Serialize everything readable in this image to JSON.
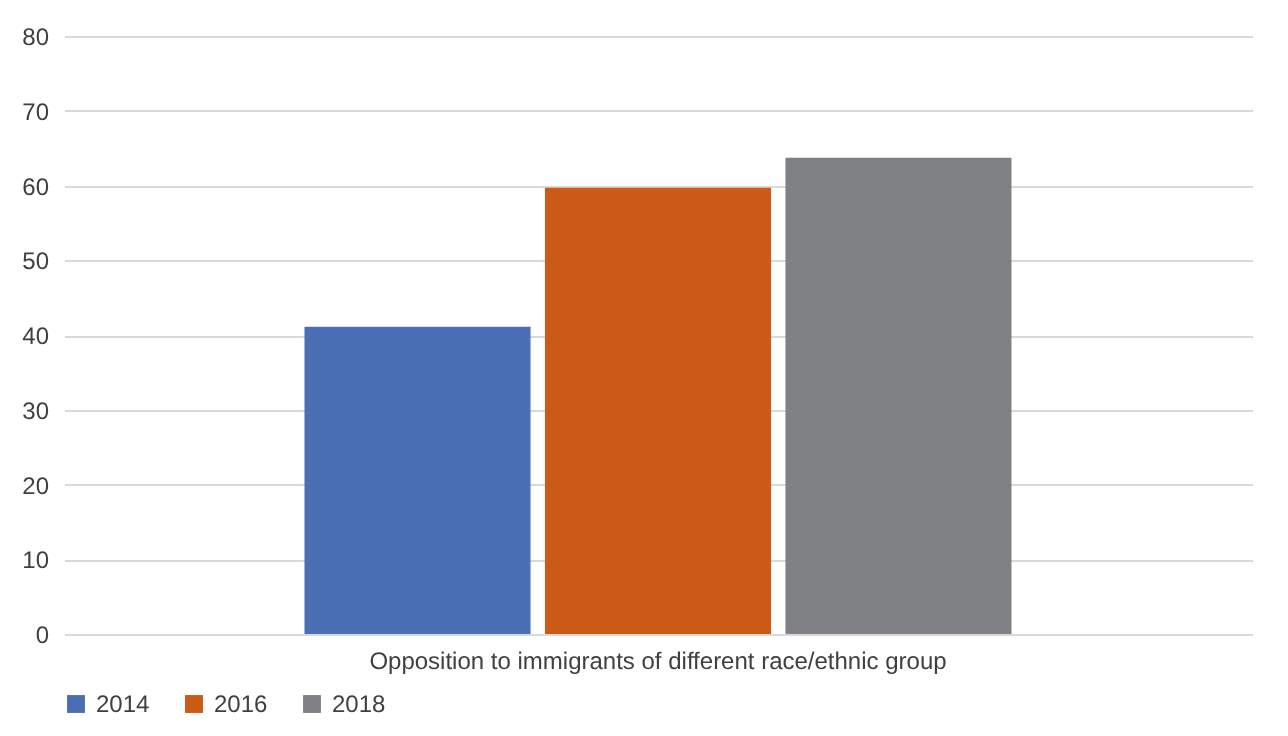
{
  "chart_data": {
    "type": "bar",
    "categories": [
      "Opposition to immigrants of different race/ethnic group"
    ],
    "series": [
      {
        "name": "2014",
        "color": "#4a6fb5",
        "values": [
          41.1
        ]
      },
      {
        "name": "2016",
        "color": "#cc5a16",
        "values": [
          59.7
        ]
      },
      {
        "name": "2018",
        "color": "#808184",
        "values": [
          63.7
        ]
      }
    ],
    "ylim": [
      0,
      80
    ],
    "yticks": [
      0,
      10,
      20,
      30,
      40,
      50,
      60,
      70,
      80
    ],
    "grid": "y",
    "legend": "bottom"
  }
}
